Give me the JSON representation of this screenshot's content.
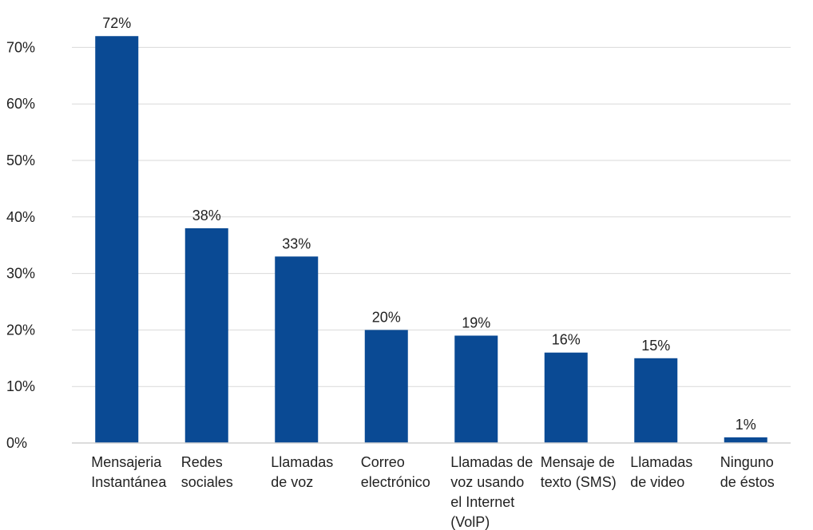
{
  "chart_data": {
    "type": "bar",
    "categories": [
      [
        "Mensajeria",
        "Instantánea"
      ],
      [
        "Redes",
        "sociales"
      ],
      [
        "Llamadas",
        "de voz"
      ],
      [
        "Correo",
        "electrónico"
      ],
      [
        "Llamadas de",
        "voz usando",
        "el Internet",
        "(VolP)"
      ],
      [
        "Mensaje de",
        "texto (SMS)"
      ],
      [
        "Llamadas",
        "de video"
      ],
      [
        "Ninguno",
        "de éstos"
      ]
    ],
    "values": [
      72,
      38,
      33,
      20,
      19,
      16,
      15,
      1
    ],
    "data_labels": [
      "72%",
      "38%",
      "33%",
      "20%",
      "19%",
      "16%",
      "15%",
      "1%"
    ],
    "yticks": [
      0,
      10,
      20,
      30,
      40,
      50,
      60,
      70
    ],
    "ytick_labels": [
      "0%",
      "10%",
      "20%",
      "30%",
      "40%",
      "50%",
      "60%",
      "70%"
    ],
    "ylim": [
      0,
      72
    ],
    "grid": true,
    "bar_color": "#0a4a94"
  }
}
